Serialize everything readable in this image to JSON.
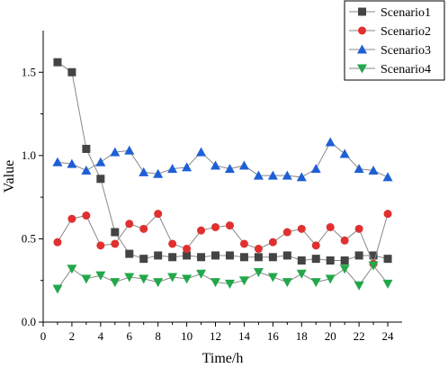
{
  "chart_data": {
    "type": "line",
    "title": "",
    "xlabel": "Time/h",
    "ylabel": "Value",
    "xlim": [
      0,
      25
    ],
    "ylim": [
      0,
      1.75
    ],
    "xticks": [
      0,
      2,
      4,
      6,
      8,
      10,
      12,
      14,
      16,
      18,
      20,
      22,
      24
    ],
    "yticks": [
      0.0,
      0.5,
      1.0,
      1.5
    ],
    "ytick_labels": [
      "0.0",
      "0.5",
      "1.0",
      "1.5"
    ],
    "grid": false,
    "legend_position": "top-right",
    "x": [
      1,
      2,
      3,
      4,
      5,
      6,
      7,
      8,
      9,
      10,
      11,
      12,
      13,
      14,
      15,
      16,
      17,
      18,
      19,
      20,
      21,
      22,
      23,
      24
    ],
    "series": [
      {
        "name": "Scenario1",
        "color": "#444444",
        "marker": "square",
        "values": [
          1.56,
          1.5,
          1.04,
          0.86,
          0.54,
          0.41,
          0.38,
          0.4,
          0.39,
          0.4,
          0.39,
          0.4,
          0.4,
          0.39,
          0.39,
          0.39,
          0.4,
          0.37,
          0.38,
          0.37,
          0.37,
          0.4,
          0.4,
          0.38
        ]
      },
      {
        "name": "Scenario2",
        "color": "#e03030",
        "marker": "circle",
        "values": [
          0.48,
          0.62,
          0.64,
          0.46,
          0.47,
          0.59,
          0.56,
          0.65,
          0.47,
          0.44,
          0.55,
          0.57,
          0.58,
          0.47,
          0.44,
          0.48,
          0.54,
          0.56,
          0.46,
          0.57,
          0.49,
          0.56,
          0.35,
          0.65
        ]
      },
      {
        "name": "Scenario3",
        "color": "#1f5fd6",
        "marker": "triangle-up",
        "values": [
          0.96,
          0.95,
          0.91,
          0.96,
          1.02,
          1.03,
          0.9,
          0.89,
          0.92,
          0.93,
          1.02,
          0.94,
          0.92,
          0.94,
          0.88,
          0.88,
          0.88,
          0.87,
          0.92,
          1.08,
          1.01,
          0.92,
          0.91,
          0.87
        ]
      },
      {
        "name": "Scenario4",
        "color": "#22a84a",
        "marker": "triangle-down",
        "values": [
          0.2,
          0.32,
          0.26,
          0.28,
          0.24,
          0.27,
          0.26,
          0.24,
          0.27,
          0.26,
          0.29,
          0.24,
          0.23,
          0.25,
          0.3,
          0.27,
          0.24,
          0.29,
          0.24,
          0.26,
          0.32,
          0.22,
          0.34,
          0.23
        ]
      }
    ]
  }
}
